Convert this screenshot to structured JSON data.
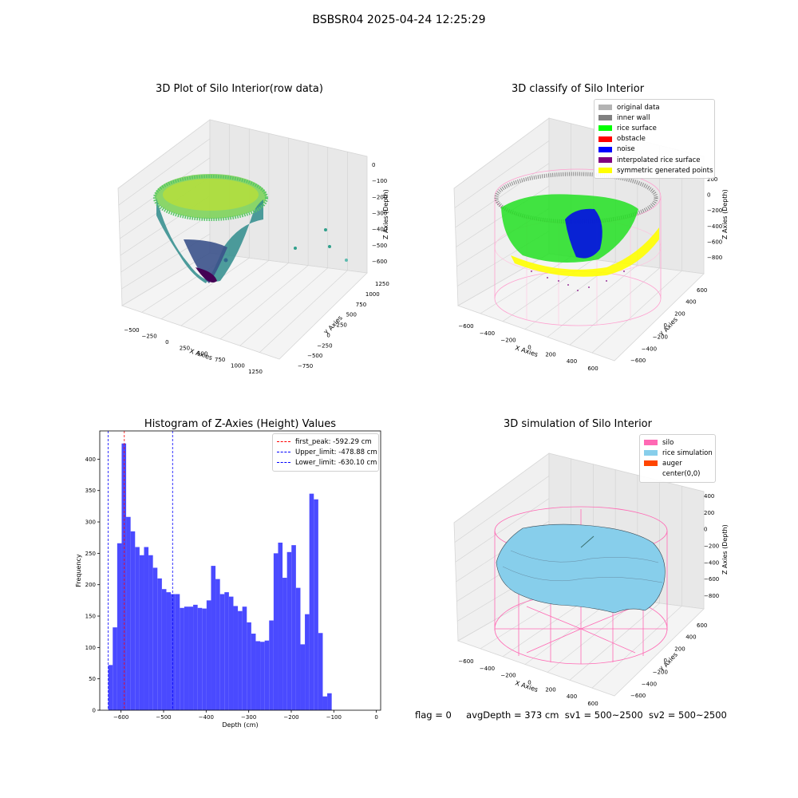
{
  "suptitle": "BSBSR04 2025-04-24 12:25:29",
  "colors": {
    "hist_bar": "#4a4aff",
    "first_peak_line": "#ff0000",
    "limit_line": "#0000ff",
    "original": "#b3b3b3",
    "inner_wall": "#808080",
    "rice_surface": "#00ff00",
    "obstacle": "#ff0000",
    "noise": "#0000ff",
    "interpolated": "#800080",
    "symmetric": "#ffff00",
    "silo": "#ff69b4",
    "rice_sim": "#87ceeb",
    "auger": "#ff4500"
  },
  "panels": {
    "raw": {
      "title": "3D Plot of Silo Interior(row data)",
      "x_label": "X Axies",
      "y_label": "Y Axies",
      "z_label": "Z Axies (Depth)",
      "x_ticks": [
        "−500",
        "−250",
        "0",
        "250",
        "500",
        "750",
        "1000",
        "1250"
      ],
      "y_ticks": [
        "−750",
        "−500",
        "−250",
        "0",
        "250",
        "500",
        "750",
        "1000",
        "1250"
      ],
      "z_ticks": [
        "0",
        "−100",
        "−200",
        "−300",
        "−400",
        "−500",
        "−600"
      ]
    },
    "classify": {
      "title": "3D classify of Silo Interior",
      "x_label": "X Axies",
      "y_label": "Y Axies",
      "z_label": "Z Axies (Depth)",
      "x_ticks": [
        "−600",
        "−400",
        "−200",
        "0",
        "200",
        "400",
        "600"
      ],
      "y_ticks": [
        "−600",
        "−400",
        "−200",
        "0",
        "200",
        "400",
        "600"
      ],
      "z_ticks": [
        "200",
        "0",
        "−200",
        "−400",
        "−600",
        "−800"
      ],
      "z_top_tick": "200",
      "legend": [
        {
          "label": "original data",
          "color": "#b3b3b3"
        },
        {
          "label": "inner wall",
          "color": "#808080"
        },
        {
          "label": "rice surface",
          "color": "#00ff00"
        },
        {
          "label": "obstacle",
          "color": "#ff0000"
        },
        {
          "label": "noise",
          "color": "#0000ff"
        },
        {
          "label": "interpolated rice surface",
          "color": "#800080"
        },
        {
          "label": "symmetric generated points",
          "color": "#ffff00"
        }
      ]
    },
    "sim": {
      "title": "3D simulation of Silo Interior",
      "x_label": "X Axies",
      "y_label": "Y Axies",
      "z_label": "Z Axies (Depth)",
      "x_ticks": [
        "−600",
        "−400",
        "−200",
        "0",
        "200",
        "400",
        "600"
      ],
      "y_ticks": [
        "−600",
        "−400",
        "−200",
        "0",
        "200",
        "400",
        "600"
      ],
      "z_ticks": [
        "400",
        "200",
        "0",
        "−200",
        "−400",
        "−600",
        "−800"
      ],
      "legend": [
        {
          "label": "silo",
          "color": "#ff69b4"
        },
        {
          "label": "rice simulation",
          "color": "#87ceeb"
        },
        {
          "label": "auger",
          "color": "#ff4500"
        },
        {
          "label": "center(0,0)",
          "color": "none"
        }
      ]
    }
  },
  "chart_data": [
    {
      "type": "bar",
      "title": "Histogram of Z-Axies (Height) Values",
      "xlabel": "Depth (cm)",
      "ylabel": "Frequency",
      "xlim": [
        -650,
        10
      ],
      "ylim": [
        0,
        445
      ],
      "x_ticks": [
        -600,
        -500,
        -400,
        -300,
        -200,
        -100,
        0
      ],
      "x_tick_labels": [
        "−600",
        "−500",
        "−400",
        "−300",
        "−200",
        "−100",
        "0"
      ],
      "y_ticks": [
        0,
        50,
        100,
        150,
        200,
        250,
        300,
        350,
        400
      ],
      "bin_start": -630,
      "bin_width": 10.5,
      "values": [
        72,
        132,
        266,
        425,
        308,
        285,
        260,
        247,
        260,
        247,
        227,
        210,
        193,
        188,
        185,
        185,
        163,
        165,
        165,
        168,
        163,
        162,
        175,
        230,
        209,
        185,
        188,
        181,
        166,
        158,
        165,
        140,
        122,
        110,
        109,
        111,
        143,
        250,
        267,
        211,
        252,
        263,
        195,
        105,
        153,
        345,
        336,
        123,
        22,
        27
      ],
      "lines": [
        {
          "name": "first_peak: -592.29 cm",
          "x": -592.29,
          "color": "#ff0000"
        },
        {
          "name": "Upper_limit: -478.88 cm",
          "x": -478.88,
          "color": "#0000ff"
        },
        {
          "name": "Lower_limit: -630.10 cm",
          "x": -630.1,
          "color": "#0000ff"
        }
      ]
    }
  ],
  "footer": {
    "flag": "flag = 0",
    "avg": "avgDepth = 373 cm",
    "sv1": "sv1 = 500~2500",
    "sv2": "sv2 = 500~2500"
  }
}
